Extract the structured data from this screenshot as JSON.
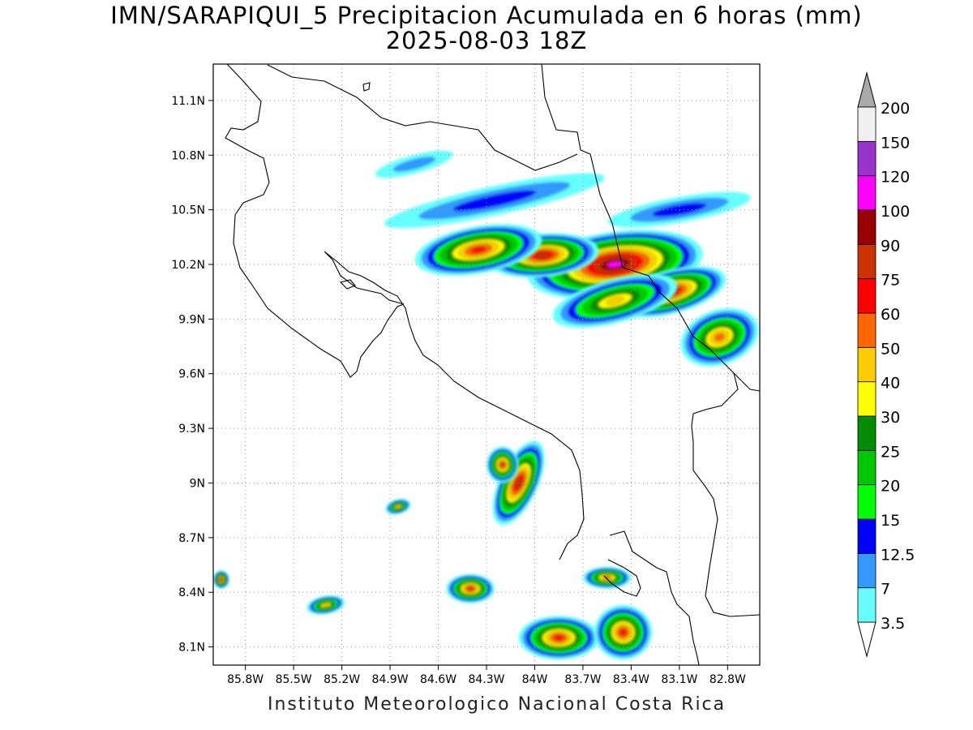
{
  "title": {
    "line1": "IMN/SARAPIQUI_5 Precipitacion Acumulada en 6 horas (mm)",
    "line2": "2025-08-03 18Z"
  },
  "footer": "Instituto Meteorologico Nacional Costa Rica",
  "map": {
    "lon_range": [
      -86.0,
      -82.6
    ],
    "lat_range": [
      8.0,
      11.3
    ],
    "lon_ticks": [
      {
        "value": -85.8,
        "label": "85.8W"
      },
      {
        "value": -85.5,
        "label": "85.5W"
      },
      {
        "value": -85.2,
        "label": "85.2W"
      },
      {
        "value": -84.9,
        "label": "84.9W"
      },
      {
        "value": -84.6,
        "label": "84.6W"
      },
      {
        "value": -84.3,
        "label": "84.3W"
      },
      {
        "value": -84.0,
        "label": "84W"
      },
      {
        "value": -83.7,
        "label": "83.7W"
      },
      {
        "value": -83.4,
        "label": "83.4W"
      },
      {
        "value": -83.1,
        "label": "83.1W"
      },
      {
        "value": -82.8,
        "label": "82.8W"
      }
    ],
    "lat_ticks": [
      {
        "value": 8.1,
        "label": "8.1N"
      },
      {
        "value": 8.4,
        "label": "8.4N"
      },
      {
        "value": 8.7,
        "label": "8.7N"
      },
      {
        "value": 9.0,
        "label": "9N"
      },
      {
        "value": 9.3,
        "label": "9.3N"
      },
      {
        "value": 9.6,
        "label": "9.6N"
      },
      {
        "value": 9.9,
        "label": "9.9N"
      },
      {
        "value": 10.2,
        "label": "10.2N"
      },
      {
        "value": 10.5,
        "label": "10.5N"
      },
      {
        "value": 10.8,
        "label": "10.8N"
      },
      {
        "value": 11.1,
        "label": "11.1N"
      }
    ],
    "grid": true
  },
  "colorbar": {
    "levels": [
      {
        "label": "3.5",
        "color": "#66ffff"
      },
      {
        "label": "7",
        "color": "#3399ff"
      },
      {
        "label": "12.5",
        "color": "#0000ff"
      },
      {
        "label": "15",
        "color": "#00ff00"
      },
      {
        "label": "20",
        "color": "#00c800"
      },
      {
        "label": "25",
        "color": "#008c00"
      },
      {
        "label": "30",
        "color": "#ffff00"
      },
      {
        "label": "40",
        "color": "#ffcc00"
      },
      {
        "label": "50",
        "color": "#ff6600"
      },
      {
        "label": "60",
        "color": "#ff0000"
      },
      {
        "label": "75",
        "color": "#cc3300"
      },
      {
        "label": "90",
        "color": "#990000"
      },
      {
        "label": "100",
        "color": "#ff00ff"
      },
      {
        "label": "120",
        "color": "#9933cc"
      },
      {
        "label": "150",
        "color": "#f0f0f0"
      },
      {
        "label": "200",
        "color": "#aaaaaa"
      }
    ],
    "low_end_color": "#ffffff",
    "high_end_color": "#aaaaaa"
  },
  "cells": [
    {
      "lon": -83.5,
      "lat": 10.2,
      "rx": 0.55,
      "ry": 0.18,
      "rot": -8,
      "peak": 12
    },
    {
      "lon": -83.95,
      "lat": 10.25,
      "rx": 0.35,
      "ry": 0.12,
      "rot": -5,
      "peak": 10
    },
    {
      "lon": -84.35,
      "lat": 10.28,
      "rx": 0.4,
      "ry": 0.13,
      "rot": -10,
      "peak": 9
    },
    {
      "lon": -83.15,
      "lat": 10.05,
      "rx": 0.35,
      "ry": 0.12,
      "rot": -15,
      "peak": 10
    },
    {
      "lon": -82.85,
      "lat": 9.8,
      "rx": 0.25,
      "ry": 0.15,
      "rot": -20,
      "peak": 8
    },
    {
      "lon": -83.5,
      "lat": 10.0,
      "rx": 0.4,
      "ry": 0.12,
      "rot": -15,
      "peak": 7
    },
    {
      "lon": -84.1,
      "lat": 9.0,
      "rx": 0.12,
      "ry": 0.25,
      "rot": 25,
      "peak": 10
    },
    {
      "lon": -84.2,
      "lat": 9.1,
      "rx": 0.1,
      "ry": 0.1,
      "rot": 0,
      "peak": 9
    },
    {
      "lon": -83.85,
      "lat": 8.15,
      "rx": 0.25,
      "ry": 0.12,
      "rot": 0,
      "peak": 9
    },
    {
      "lon": -83.45,
      "lat": 8.18,
      "rx": 0.18,
      "ry": 0.15,
      "rot": 0,
      "peak": 9
    },
    {
      "lon": -84.4,
      "lat": 8.42,
      "rx": 0.15,
      "ry": 0.08,
      "rot": 0,
      "peak": 9
    },
    {
      "lon": -85.3,
      "lat": 8.33,
      "rx": 0.12,
      "ry": 0.05,
      "rot": -10,
      "peak": 7
    },
    {
      "lon": -84.85,
      "lat": 8.87,
      "rx": 0.08,
      "ry": 0.04,
      "rot": -15,
      "peak": 7
    },
    {
      "lon": -85.95,
      "lat": 8.47,
      "rx": 0.05,
      "ry": 0.05,
      "rot": 0,
      "peak": 9
    },
    {
      "lon": -83.55,
      "lat": 8.48,
      "rx": 0.15,
      "ry": 0.06,
      "rot": 0,
      "peak": 8
    },
    {
      "lon": -84.25,
      "lat": 10.55,
      "rx": 0.7,
      "ry": 0.08,
      "rot": -12,
      "peak": 2
    },
    {
      "lon": -83.1,
      "lat": 10.5,
      "rx": 0.45,
      "ry": 0.07,
      "rot": -10,
      "peak": 2
    },
    {
      "lon": -84.75,
      "lat": 10.75,
      "rx": 0.25,
      "ry": 0.05,
      "rot": -15,
      "peak": 1
    }
  ]
}
